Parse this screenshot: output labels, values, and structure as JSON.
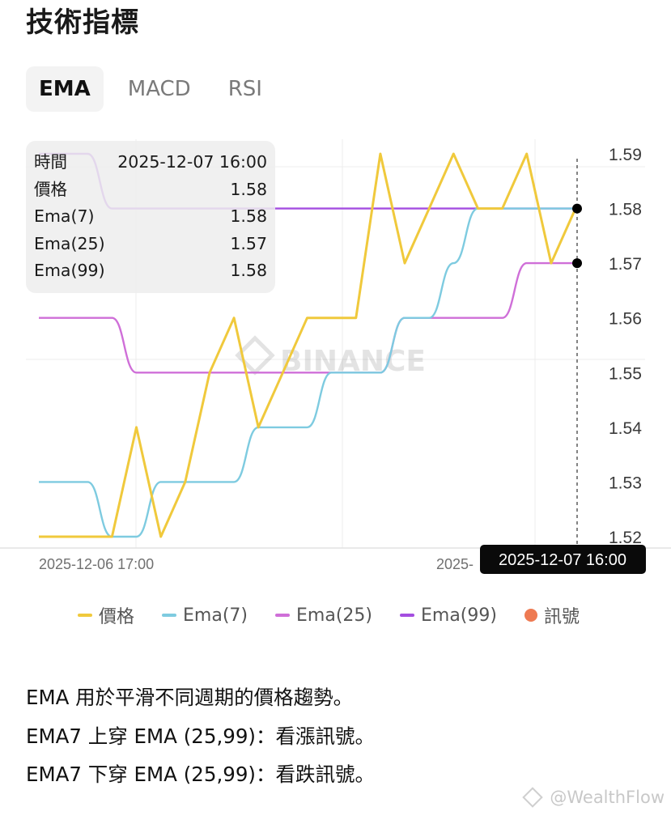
{
  "page": {
    "title": "技術指標",
    "tabs": [
      {
        "label": "EMA",
        "active": true
      },
      {
        "label": "MACD",
        "active": false
      },
      {
        "label": "RSI",
        "active": false
      }
    ]
  },
  "tooltip": {
    "rows": [
      {
        "label": "時間",
        "value": "2025-12-07 16:00"
      },
      {
        "label": "價格",
        "value": "1.58"
      },
      {
        "label": "Ema(7)",
        "value": "1.58"
      },
      {
        "label": "Ema(25)",
        "value": "1.57"
      },
      {
        "label": "Ema(99)",
        "value": "1.58"
      }
    ]
  },
  "chart_data": {
    "type": "line",
    "y_ticks": [
      "1.59",
      "1.58",
      "1.57",
      "1.56",
      "1.55",
      "1.54",
      "1.53",
      "1.52"
    ],
    "ylim": [
      1.52,
      1.59
    ],
    "x_tick_labels": [
      "2025-12-06 17:00",
      "2025-"
    ],
    "crosshair_label": "2025-12-07 16:00",
    "watermark": "BINANCE",
    "grid": true,
    "series": [
      {
        "name": "價格",
        "color": "#f0c93c",
        "values": [
          1.52,
          1.52,
          1.52,
          1.52,
          1.54,
          1.52,
          1.53,
          1.55,
          1.56,
          1.54,
          1.55,
          1.56,
          1.56,
          1.56,
          1.59,
          1.57,
          1.58,
          1.59,
          1.58,
          1.58,
          1.59,
          1.57,
          1.58
        ]
      },
      {
        "name": "Ema(7)",
        "color": "#7ecbe0",
        "values": [
          1.53,
          1.53,
          1.53,
          1.52,
          1.52,
          1.53,
          1.53,
          1.53,
          1.53,
          1.54,
          1.54,
          1.54,
          1.55,
          1.55,
          1.55,
          1.56,
          1.56,
          1.57,
          1.58,
          1.58,
          1.58,
          1.58,
          1.58
        ]
      },
      {
        "name": "Ema(25)",
        "color": "#cf6fd8",
        "values": [
          1.56,
          1.56,
          1.56,
          1.56,
          1.55,
          1.55,
          1.55,
          1.55,
          1.55,
          1.55,
          1.55,
          1.55,
          1.55,
          1.55,
          1.55,
          1.56,
          1.56,
          1.56,
          1.56,
          1.56,
          1.57,
          1.57,
          1.57
        ]
      },
      {
        "name": "Ema(99)",
        "color": "#a44ee0",
        "values": [
          1.59,
          1.59,
          1.59,
          1.58,
          1.58,
          1.58,
          1.58,
          1.58,
          1.58,
          1.58,
          1.58,
          1.58,
          1.58,
          1.58,
          1.58,
          1.58,
          1.58,
          1.58,
          1.58,
          1.58,
          1.58,
          1.58,
          1.58
        ]
      }
    ],
    "legend": [
      {
        "label": "價格",
        "color": "#f0c93c",
        "marker": "line"
      },
      {
        "label": "Ema(7)",
        "color": "#7ecbe0",
        "marker": "line"
      },
      {
        "label": "Ema(25)",
        "color": "#cf6fd8",
        "marker": "line"
      },
      {
        "label": "Ema(99)",
        "color": "#a44ee0",
        "marker": "line"
      },
      {
        "label": "訊號",
        "color": "#ee7a52",
        "marker": "dot"
      }
    ]
  },
  "description": [
    "EMA 用於平滑不同週期的價格趨勢。",
    "EMA7 上穿 EMA (25,99)：看漲訊號。",
    "EMA7 下穿 EMA (25,99)：看跌訊號。"
  ],
  "watermark_credit": "@WealthFlow"
}
